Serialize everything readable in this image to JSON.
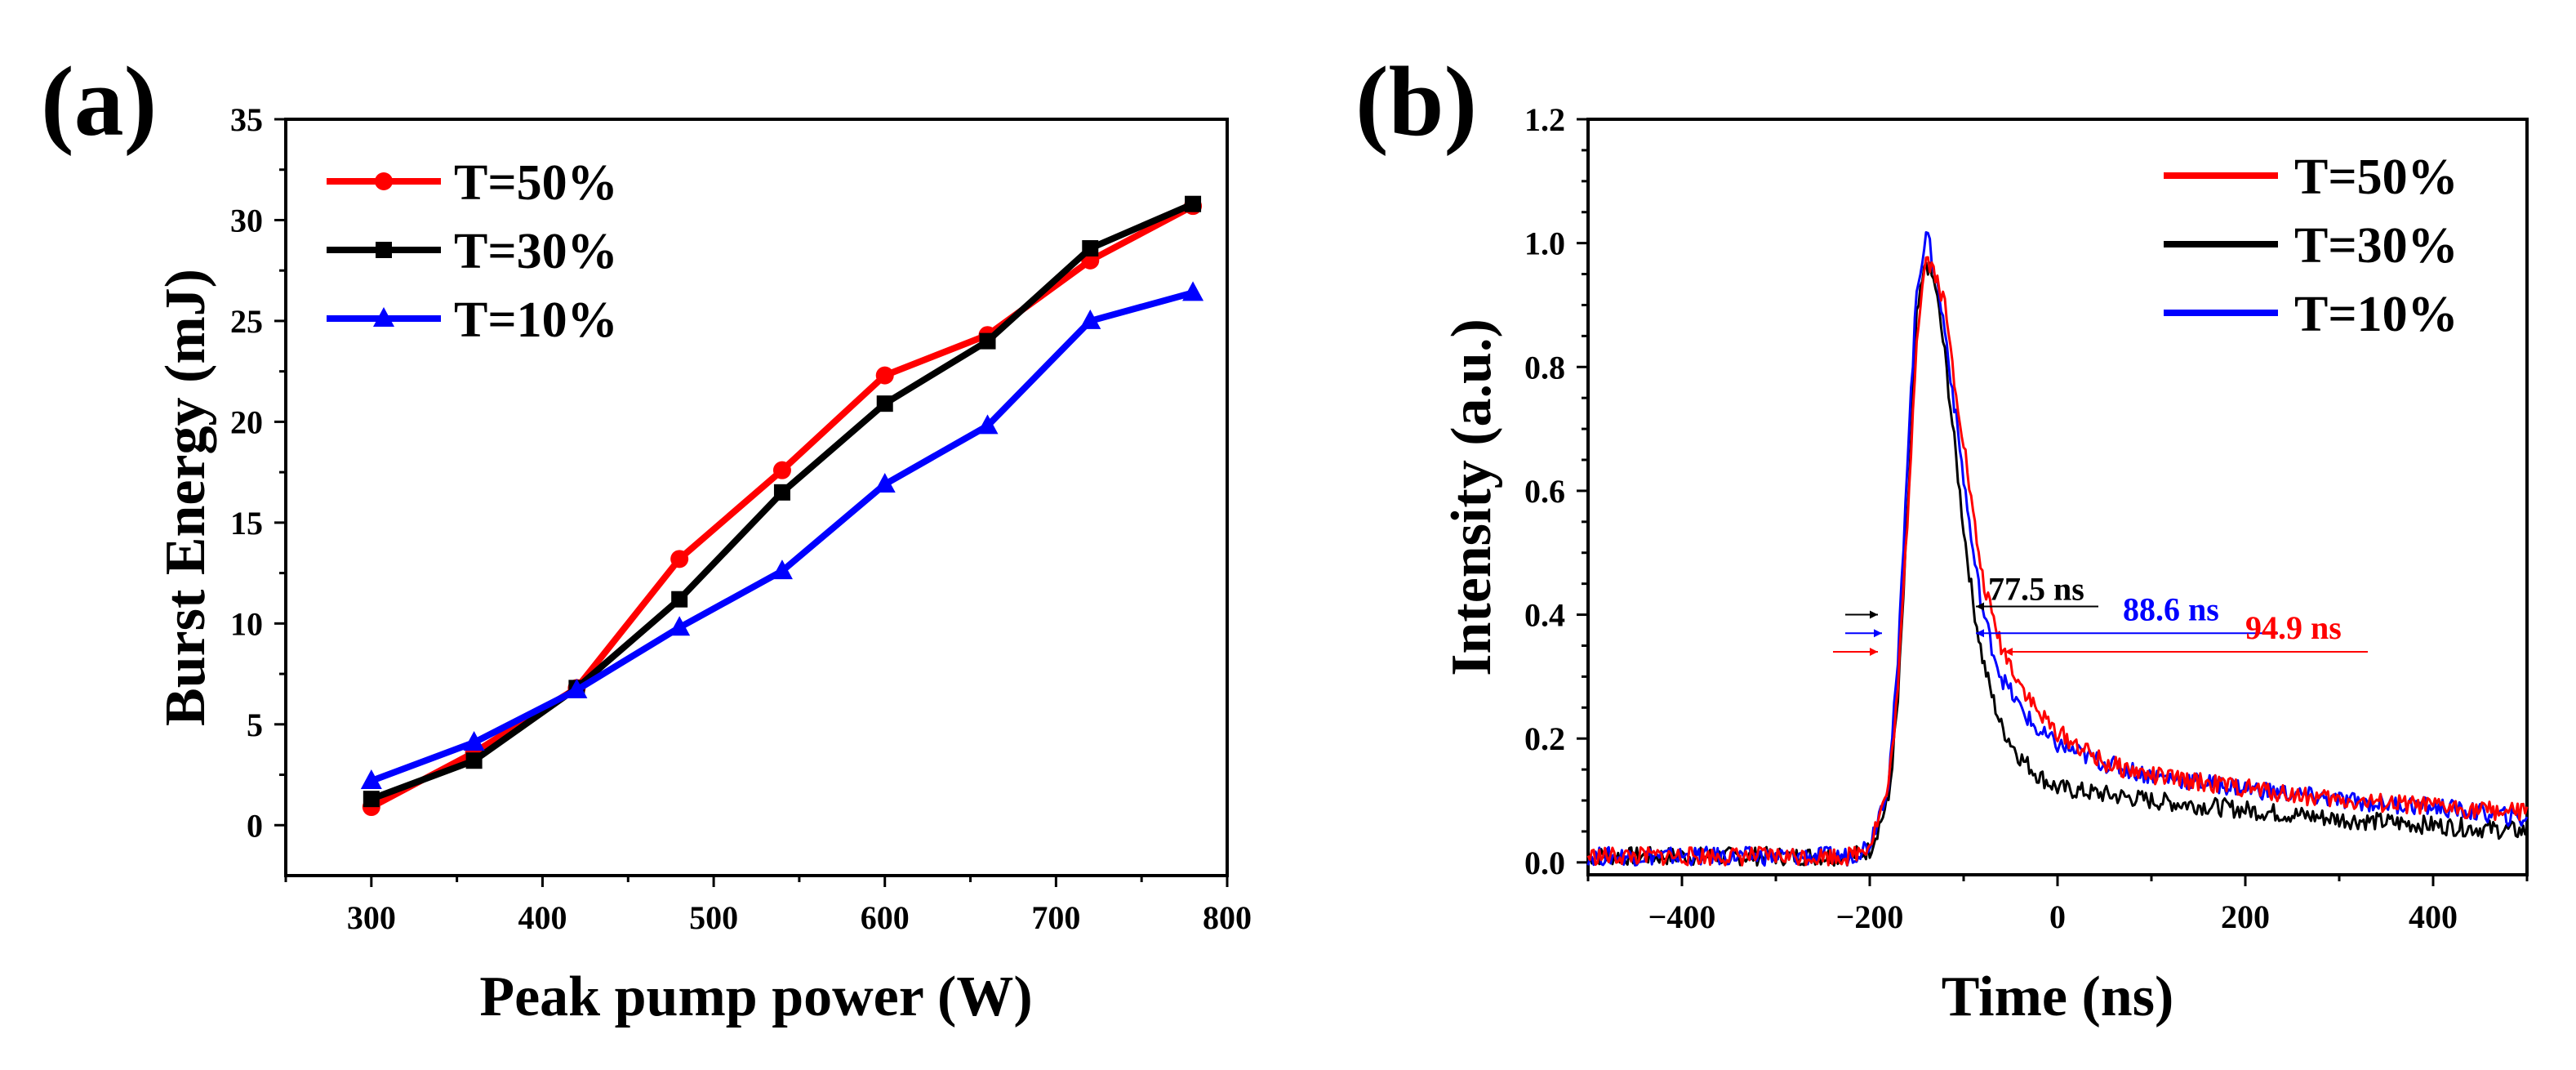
{
  "chart_data": [
    {
      "panel_label": "(a)",
      "type": "line",
      "xlabel": "Peak pump power (W)",
      "ylabel": "Burst Energy (mJ)",
      "xlim": [
        250,
        800
      ],
      "ylim": [
        -2.5,
        35
      ],
      "xticks": [
        300,
        400,
        500,
        600,
        700,
        800
      ],
      "yticks": [
        0,
        5,
        10,
        15,
        20,
        25,
        30,
        35
      ],
      "legend_position": "top-left",
      "x": [
        300,
        360,
        420,
        480,
        540,
        600,
        660,
        720,
        780
      ],
      "series": [
        {
          "name": "T=50%",
          "color": "#ff0000",
          "marker": "circle",
          "values": [
            0.9,
            3.6,
            6.8,
            13.2,
            17.6,
            22.3,
            24.3,
            28.0,
            30.7
          ]
        },
        {
          "name": "T=30%",
          "color": "#000000",
          "marker": "square",
          "values": [
            1.3,
            3.2,
            6.8,
            11.2,
            16.5,
            20.9,
            24.0,
            28.6,
            30.8
          ]
        },
        {
          "name": "T=10%",
          "color": "#0000ff",
          "marker": "triangle",
          "values": [
            2.2,
            4.1,
            6.7,
            9.8,
            12.6,
            16.9,
            19.8,
            25.0,
            26.4
          ]
        }
      ]
    },
    {
      "panel_label": "(b)",
      "type": "line",
      "xlabel": "Time (ns)",
      "ylabel": "Intensity (a.u.)",
      "xlim": [
        -500,
        500
      ],
      "ylim": [
        -0.02,
        1.2
      ],
      "xticks": [
        -400,
        -200,
        0,
        200,
        400
      ],
      "xtick_labels": [
        "−400",
        "−200",
        "0",
        "200",
        "400"
      ],
      "yticks": [
        0.0,
        0.2,
        0.4,
        0.6,
        0.8,
        1.0,
        1.2
      ],
      "ytick_labels": [
        "0.0",
        "0.2",
        "0.4",
        "0.6",
        "0.8",
        "1.0",
        "1.2"
      ],
      "legend_position": "top-right",
      "series": [
        {
          "name": "T=50%",
          "color": "#ff0000",
          "peak_x": -140,
          "peak_y": 0.98,
          "fwhm_ns": 94.9,
          "x": [
            -500,
            -220,
            -200,
            -180,
            -170,
            -160,
            -150,
            -140,
            -130,
            -120,
            -110,
            -100,
            -90,
            -80,
            -70,
            -60,
            -40,
            -20,
            0,
            50,
            100,
            200,
            300,
            400,
            500
          ],
          "values": [
            0.01,
            0.01,
            0.03,
            0.12,
            0.28,
            0.55,
            0.85,
            0.98,
            0.95,
            0.9,
            0.78,
            0.68,
            0.56,
            0.46,
            0.4,
            0.35,
            0.29,
            0.24,
            0.21,
            0.16,
            0.14,
            0.12,
            0.1,
            0.09,
            0.08
          ]
        },
        {
          "name": "T=30%",
          "color": "#000000",
          "peak_x": -140,
          "peak_y": 0.97,
          "fwhm_ns": 77.5,
          "x": [
            -500,
            -220,
            -200,
            -180,
            -170,
            -160,
            -150,
            -140,
            -130,
            -120,
            -110,
            -100,
            -90,
            -80,
            -70,
            -60,
            -40,
            -20,
            0,
            50,
            100,
            200,
            300,
            400,
            500
          ],
          "values": [
            0.01,
            0.01,
            0.02,
            0.1,
            0.26,
            0.55,
            0.88,
            0.97,
            0.93,
            0.82,
            0.68,
            0.54,
            0.42,
            0.33,
            0.27,
            0.22,
            0.17,
            0.14,
            0.12,
            0.11,
            0.1,
            0.085,
            0.07,
            0.06,
            0.05
          ]
        },
        {
          "name": "T=10%",
          "color": "#0000ff",
          "peak_x": -145,
          "peak_y": 1.02,
          "fwhm_ns": 88.6,
          "x": [
            -500,
            -220,
            -200,
            -180,
            -170,
            -160,
            -150,
            -140,
            -130,
            -120,
            -110,
            -100,
            -90,
            -80,
            -70,
            -60,
            -40,
            -20,
            0,
            50,
            100,
            200,
            300,
            400,
            500
          ],
          "values": [
            0.01,
            0.01,
            0.03,
            0.13,
            0.32,
            0.65,
            0.92,
            1.02,
            0.95,
            0.86,
            0.74,
            0.62,
            0.5,
            0.41,
            0.35,
            0.3,
            0.25,
            0.21,
            0.19,
            0.16,
            0.14,
            0.12,
            0.1,
            0.09,
            0.07
          ]
        }
      ],
      "annotations": [
        {
          "text": "77.5 ns",
          "color": "#000000",
          "y": 0.4
        },
        {
          "text": "88.6 ns",
          "color": "#0000ff",
          "y": 0.37
        },
        {
          "text": "94.9 ns",
          "color": "#ff0000",
          "y": 0.34
        }
      ]
    }
  ]
}
